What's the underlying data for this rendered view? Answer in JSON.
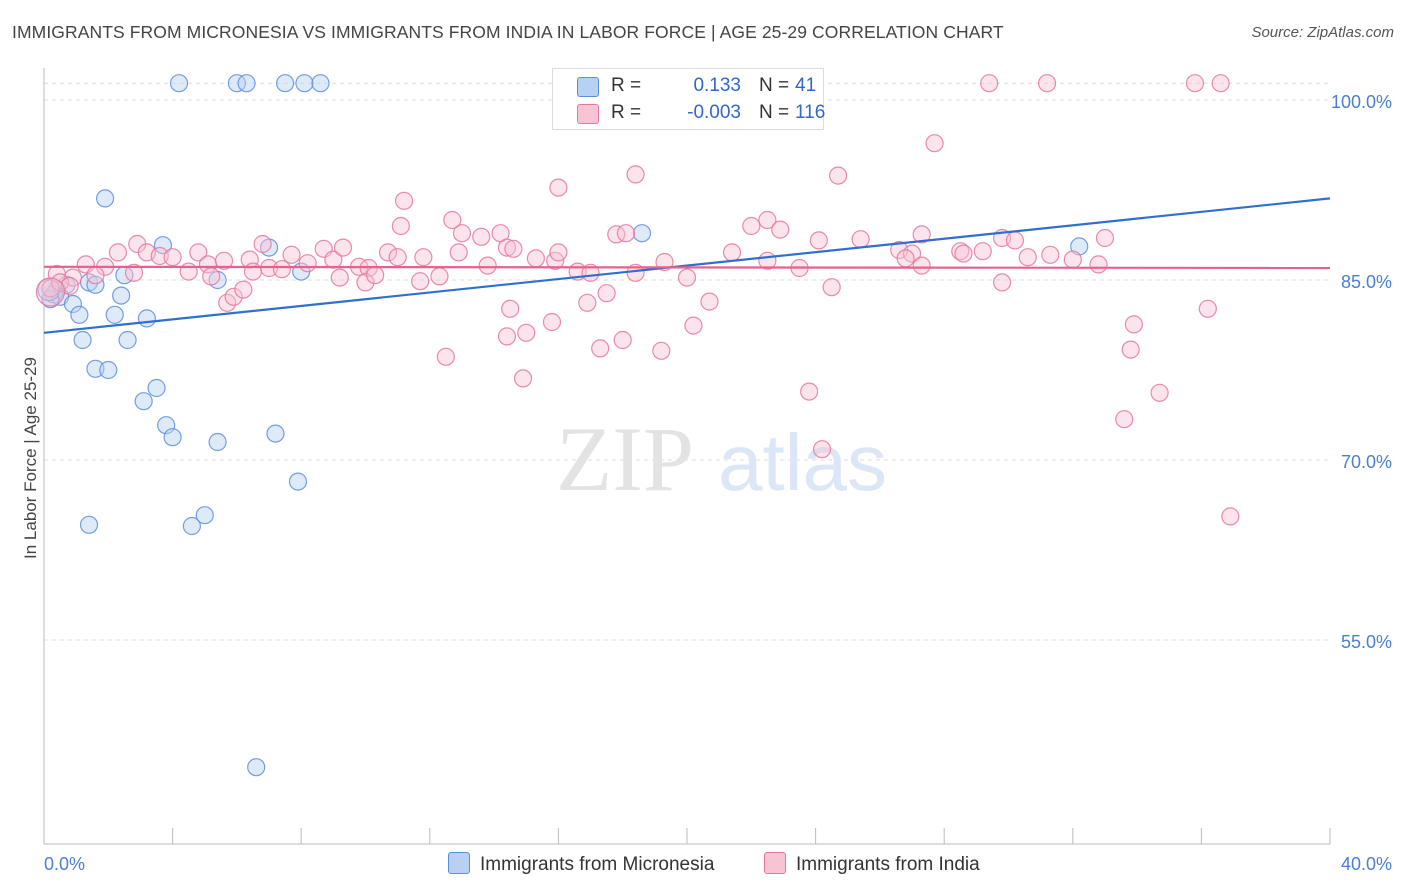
{
  "chart_data": {
    "type": "scatter",
    "title": "IMMIGRANTS FROM MICRONESIA VS IMMIGRANTS FROM INDIA IN LABOR FORCE | AGE 25-29 CORRELATION CHART",
    "source": "Source: ZipAtlas.com",
    "ylabel": "In Labor Force | Age 25-29",
    "xlabel": "",
    "xlim": [
      0,
      40
    ],
    "ylim": [
      38.0,
      103.0
    ],
    "x_tick_labels": [
      {
        "v": 0,
        "label": "0.0%"
      },
      {
        "v": 40,
        "label": "40.0%"
      }
    ],
    "y_ticks": [
      {
        "v": 100,
        "label": "100.0%"
      },
      {
        "v": 85,
        "label": "85.0%"
      },
      {
        "v": 70,
        "label": "70.0%"
      },
      {
        "v": 55,
        "label": "55.0%"
      }
    ],
    "watermark": {
      "part1": "ZIP",
      "part2": "atlas"
    },
    "legend_top": [
      {
        "r_label": "R =",
        "r_value": "0.133",
        "n_label": "N =",
        "n_value": "41"
      },
      {
        "r_label": "R =",
        "r_value": "-0.003",
        "n_label": "N =",
        "n_value": "116"
      }
    ],
    "series": [
      {
        "name": "Immigrants from Micronesia",
        "color": "#5b8fd9",
        "fill": "#b8d0f2",
        "trend": {
          "x": [
            0,
            40
          ],
          "y": [
            80.6,
            91.8
          ]
        },
        "points": [
          [
            4.2,
            101.4
          ],
          [
            6.0,
            101.4
          ],
          [
            6.3,
            101.4
          ],
          [
            7.5,
            101.4
          ],
          [
            8.1,
            101.4
          ],
          [
            8.6,
            101.4
          ],
          [
            1.9,
            91.8
          ],
          [
            3.7,
            87.9
          ],
          [
            7.0,
            87.7
          ],
          [
            8.0,
            85.7
          ],
          [
            18.6,
            88.9
          ],
          [
            32.2,
            87.8
          ],
          [
            2.5,
            85.4
          ],
          [
            5.4,
            85.0
          ],
          [
            1.4,
            84.8
          ],
          [
            0.7,
            84.6
          ],
          [
            1.6,
            84.6
          ],
          [
            0.4,
            84.2
          ],
          [
            0.3,
            83.8
          ],
          [
            0.5,
            83.6
          ],
          [
            0.2,
            83.4
          ],
          [
            2.4,
            83.7
          ],
          [
            0.9,
            83.0
          ],
          [
            1.1,
            82.1
          ],
          [
            2.2,
            82.1
          ],
          [
            3.2,
            81.8
          ],
          [
            1.2,
            80.0
          ],
          [
            2.6,
            80.0
          ],
          [
            1.6,
            77.6
          ],
          [
            2.0,
            77.5
          ],
          [
            3.5,
            76.0
          ],
          [
            3.1,
            74.9
          ],
          [
            3.8,
            72.9
          ],
          [
            4.0,
            71.9
          ],
          [
            5.4,
            71.5
          ],
          [
            7.2,
            72.2
          ],
          [
            7.9,
            68.2
          ],
          [
            1.4,
            64.6
          ],
          [
            4.6,
            64.5
          ],
          [
            5.0,
            65.4
          ],
          [
            6.6,
            44.4
          ]
        ]
      },
      {
        "name": "Immigrants from India",
        "color": "#e8769c",
        "fill": "#f7c4d4",
        "trend": {
          "x": [
            0,
            40
          ],
          "y": [
            86.1,
            86.0
          ]
        },
        "points": [
          [
            29.4,
            101.4
          ],
          [
            31.2,
            101.4
          ],
          [
            35.8,
            101.4
          ],
          [
            36.6,
            101.4
          ],
          [
            27.7,
            96.4
          ],
          [
            18.4,
            93.8
          ],
          [
            24.7,
            93.7
          ],
          [
            16.0,
            92.7
          ],
          [
            11.2,
            91.6
          ],
          [
            12.7,
            90.0
          ],
          [
            22.5,
            90.0
          ],
          [
            13.0,
            88.9
          ],
          [
            11.1,
            89.5
          ],
          [
            13.6,
            88.6
          ],
          [
            14.2,
            88.9
          ],
          [
            17.8,
            88.8
          ],
          [
            18.1,
            88.9
          ],
          [
            22.0,
            89.5
          ],
          [
            22.9,
            89.2
          ],
          [
            24.1,
            88.3
          ],
          [
            25.4,
            88.4
          ],
          [
            27.3,
            88.8
          ],
          [
            29.8,
            88.5
          ],
          [
            30.2,
            88.3
          ],
          [
            33.0,
            88.5
          ],
          [
            14.4,
            87.7
          ],
          [
            0.4,
            85.5
          ],
          [
            0.9,
            85.2
          ],
          [
            1.3,
            86.3
          ],
          [
            1.9,
            86.1
          ],
          [
            2.3,
            87.3
          ],
          [
            2.9,
            88.0
          ],
          [
            3.2,
            87.3
          ],
          [
            3.6,
            87.0
          ],
          [
            4.0,
            86.9
          ],
          [
            4.8,
            87.3
          ],
          [
            5.1,
            86.3
          ],
          [
            5.6,
            86.6
          ],
          [
            6.4,
            86.7
          ],
          [
            6.8,
            88.0
          ],
          [
            7.0,
            86.0
          ],
          [
            7.7,
            87.1
          ],
          [
            8.2,
            86.4
          ],
          [
            8.7,
            87.6
          ],
          [
            9.0,
            86.7
          ],
          [
            9.3,
            87.7
          ],
          [
            9.8,
            86.1
          ],
          [
            10.1,
            86.0
          ],
          [
            10.7,
            87.3
          ],
          [
            11.0,
            86.9
          ],
          [
            11.8,
            86.9
          ],
          [
            12.3,
            85.3
          ],
          [
            12.9,
            87.3
          ],
          [
            13.8,
            86.2
          ],
          [
            14.6,
            87.6
          ],
          [
            15.3,
            86.8
          ],
          [
            15.9,
            86.6
          ],
          [
            16.0,
            87.3
          ],
          [
            16.6,
            85.7
          ],
          [
            17.0,
            85.6
          ],
          [
            18.4,
            85.6
          ],
          [
            19.3,
            86.5
          ],
          [
            20.0,
            85.2
          ],
          [
            21.4,
            87.3
          ],
          [
            22.5,
            86.6
          ],
          [
            23.5,
            86.0
          ],
          [
            28.5,
            87.4
          ],
          [
            0.2,
            84.3
          ],
          [
            0.5,
            84.8
          ],
          [
            0.8,
            84.5
          ],
          [
            1.6,
            85.4
          ],
          [
            2.8,
            85.6
          ],
          [
            4.5,
            85.7
          ],
          [
            5.2,
            85.3
          ],
          [
            6.5,
            85.7
          ],
          [
            7.4,
            85.9
          ],
          [
            9.2,
            85.2
          ],
          [
            10.0,
            84.8
          ],
          [
            10.3,
            85.4
          ],
          [
            11.7,
            84.9
          ],
          [
            5.7,
            83.1
          ],
          [
            5.9,
            83.6
          ],
          [
            6.2,
            84.2
          ],
          [
            14.5,
            82.6
          ],
          [
            15.8,
            81.5
          ],
          [
            16.9,
            83.1
          ],
          [
            17.5,
            83.9
          ],
          [
            20.7,
            83.2
          ],
          [
            24.5,
            84.4
          ],
          [
            14.4,
            80.3
          ],
          [
            15.0,
            80.6
          ],
          [
            18.0,
            80.0
          ],
          [
            17.3,
            79.3
          ],
          [
            20.2,
            81.2
          ],
          [
            12.5,
            78.6
          ],
          [
            19.2,
            79.1
          ],
          [
            29.8,
            84.8
          ],
          [
            33.9,
            81.3
          ],
          [
            33.8,
            79.2
          ],
          [
            14.9,
            76.8
          ],
          [
            23.8,
            75.7
          ],
          [
            34.7,
            75.6
          ],
          [
            33.6,
            73.4
          ],
          [
            24.2,
            70.9
          ],
          [
            36.2,
            82.6
          ],
          [
            36.9,
            65.3
          ],
          [
            26.6,
            87.5
          ],
          [
            27.0,
            87.2
          ],
          [
            26.8,
            86.8
          ],
          [
            27.3,
            86.2
          ],
          [
            28.6,
            87.2
          ],
          [
            29.2,
            87.4
          ],
          [
            30.6,
            86.9
          ],
          [
            31.3,
            87.1
          ],
          [
            32.0,
            86.7
          ],
          [
            32.8,
            86.3
          ]
        ]
      }
    ]
  }
}
